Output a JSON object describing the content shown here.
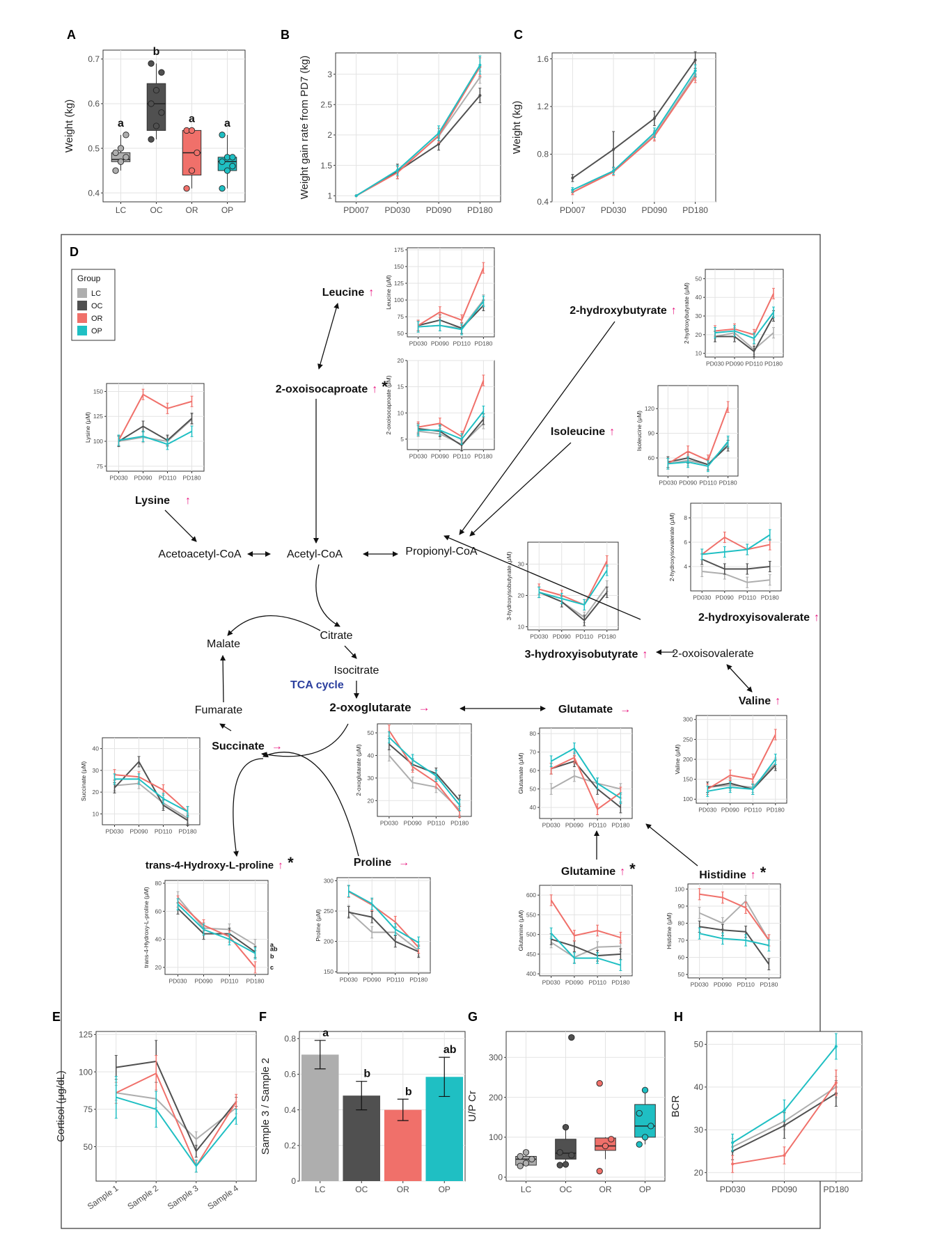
{
  "colors": {
    "LC": "#AEAEAE",
    "OC": "#505050",
    "OR": "#F0706A",
    "OP": "#1FBFC3",
    "arrow_up": "#E8167F",
    "tca": "#2B3F9E"
  },
  "legend": {
    "title": "Group",
    "items": [
      "LC",
      "OC",
      "OR",
      "OP"
    ]
  },
  "chart_data": [
    {
      "panel": "A",
      "type": "box",
      "ylabel": "Weight (kg)",
      "ylim": [
        0.38,
        0.72
      ],
      "yticks": [
        0.4,
        0.5,
        0.6,
        0.7
      ],
      "categories": [
        "LC",
        "OC",
        "OR",
        "OP"
      ],
      "boxes": [
        {
          "q1": 0.47,
          "median": 0.475,
          "q3": 0.49,
          "min": 0.45,
          "max": 0.53,
          "points": [
            0.45,
            0.47,
            0.48,
            0.49,
            0.5,
            0.53
          ],
          "letter": "a"
        },
        {
          "q1": 0.54,
          "median": 0.6,
          "q3": 0.645,
          "min": 0.52,
          "max": 0.69,
          "points": [
            0.52,
            0.55,
            0.58,
            0.6,
            0.63,
            0.67,
            0.69
          ],
          "letter": "b"
        },
        {
          "q1": 0.44,
          "median": 0.49,
          "q3": 0.54,
          "min": 0.41,
          "max": 0.54,
          "points": [
            0.41,
            0.45,
            0.49,
            0.54,
            0.54
          ],
          "letter": "a"
        },
        {
          "q1": 0.45,
          "median": 0.47,
          "q3": 0.48,
          "min": 0.41,
          "max": 0.53,
          "points": [
            0.41,
            0.45,
            0.46,
            0.47,
            0.48,
            0.48,
            0.53
          ],
          "letter": "a"
        }
      ]
    },
    {
      "panel": "B",
      "type": "line",
      "ylabel": "Weight gain rate from PD7 (kg)",
      "x": [
        "PD007",
        "PD030",
        "PD090",
        "PD180"
      ],
      "ylim": [
        0.9,
        3.35
      ],
      "yticks": [
        1.0,
        1.5,
        2.0,
        2.5,
        3.0
      ],
      "series": [
        {
          "name": "LC",
          "values": [
            1.0,
            1.4,
            1.98,
            2.95
          ],
          "err": [
            0,
            0.08,
            0.08,
            0.1
          ]
        },
        {
          "name": "OC",
          "values": [
            1.0,
            1.4,
            1.85,
            2.65
          ],
          "err": [
            0,
            0.12,
            0.1,
            0.12
          ]
        },
        {
          "name": "OR",
          "values": [
            1.0,
            1.38,
            1.99,
            3.12
          ],
          "err": [
            0,
            0.1,
            0.12,
            0.15
          ]
        },
        {
          "name": "OP",
          "values": [
            1.0,
            1.42,
            2.03,
            3.15
          ],
          "err": [
            0,
            0.08,
            0.12,
            0.15
          ]
        }
      ]
    },
    {
      "panel": "C",
      "type": "line",
      "ylabel": "Weight (kg)",
      "x": [
        "PD007",
        "PD030",
        "PD090",
        "PD180"
      ],
      "ylim": [
        0.4,
        1.65
      ],
      "yticks": [
        0.4,
        0.8,
        1.2,
        1.6
      ],
      "series": [
        {
          "name": "LC",
          "values": [
            0.48,
            0.66,
            0.96,
            1.47
          ],
          "err": [
            0.02,
            0.03,
            0.04,
            0.05
          ]
        },
        {
          "name": "OC",
          "values": [
            0.6,
            0.84,
            1.1,
            1.59
          ],
          "err": [
            0.03,
            0.15,
            0.06,
            0.07
          ]
        },
        {
          "name": "OR",
          "values": [
            0.48,
            0.65,
            0.95,
            1.45
          ],
          "err": [
            0.02,
            0.03,
            0.04,
            0.05
          ]
        },
        {
          "name": "OP",
          "values": [
            0.5,
            0.66,
            0.98,
            1.5
          ],
          "err": [
            0.02,
            0.03,
            0.04,
            0.05
          ]
        }
      ]
    },
    {
      "panel": "E",
      "type": "line",
      "ylabel": "Cortisol (μg/dL)",
      "x": [
        "Sample 1",
        "Sample 2",
        "Sample 3",
        "Sample 4"
      ],
      "ylim": [
        27,
        127
      ],
      "yticks": [
        50,
        75,
        100,
        125
      ],
      "series": [
        {
          "name": "LC",
          "values": [
            86,
            82,
            55,
            76
          ],
          "err": [
            5,
            6,
            5,
            4
          ]
        },
        {
          "name": "OC",
          "values": [
            103,
            107,
            47,
            80
          ],
          "err": [
            8,
            14,
            4,
            3
          ]
        },
        {
          "name": "OR",
          "values": [
            86,
            99,
            37,
            80
          ],
          "err": [
            7,
            12,
            4,
            5
          ]
        },
        {
          "name": "OP",
          "values": [
            83,
            75,
            37,
            70
          ],
          "err": [
            14,
            12,
            4,
            5
          ]
        }
      ]
    },
    {
      "panel": "F",
      "type": "bar",
      "ylabel": "Sample 3 / Sample 2",
      "categories": [
        "LC",
        "OC",
        "OR",
        "OP"
      ],
      "ylim": [
        0,
        0.84
      ],
      "yticks": [
        0.0,
        0.2,
        0.4,
        0.6,
        0.8
      ],
      "values": [
        0.71,
        0.48,
        0.4,
        0.585
      ],
      "err": [
        0.08,
        0.08,
        0.06,
        0.11
      ],
      "letters": [
        "a",
        "b",
        "b",
        "ab"
      ]
    },
    {
      "panel": "G",
      "type": "box",
      "ylabel": "U/P Cr",
      "categories": [
        "LC",
        "OC",
        "OR",
        "OP"
      ],
      "ylim": [
        -10,
        365
      ],
      "yticks": [
        0,
        100,
        200,
        300
      ],
      "boxes": [
        {
          "q1": 30,
          "median": 45,
          "q3": 52,
          "min": 28,
          "max": 62,
          "points": [
            28,
            35,
            45,
            52,
            62
          ]
        },
        {
          "q1": 45,
          "median": 60,
          "q3": 95,
          "min": 30,
          "max": 125,
          "points": [
            30,
            32,
            55,
            62,
            125,
            350
          ]
        },
        {
          "q1": 67,
          "median": 78,
          "q3": 98,
          "min": 45,
          "max": 100,
          "points": [
            15,
            78,
            95,
            235
          ]
        },
        {
          "q1": 100,
          "median": 128,
          "q3": 182,
          "min": 82,
          "max": 218,
          "points": [
            82,
            100,
            128,
            160,
            218
          ]
        }
      ]
    },
    {
      "panel": "H",
      "type": "line",
      "ylabel": "BCR",
      "x": [
        "PD030",
        "PD090",
        "PD180"
      ],
      "ylim": [
        18,
        53
      ],
      "yticks": [
        20,
        30,
        40,
        50
      ],
      "series": [
        {
          "name": "LC",
          "values": [
            26,
            32,
            40
          ],
          "err": [
            2,
            2,
            2.5
          ]
        },
        {
          "name": "OC",
          "values": [
            25,
            31,
            38.5
          ],
          "err": [
            2,
            3,
            3
          ]
        },
        {
          "name": "OR",
          "values": [
            22,
            24,
            41
          ],
          "err": [
            2,
            2,
            3
          ]
        },
        {
          "name": "OP",
          "values": [
            27,
            34.5,
            49.5
          ],
          "err": [
            2,
            2.5,
            3
          ]
        }
      ]
    }
  ],
  "metabolites": [
    {
      "id": "leucine",
      "ylabel": "Leucine (μM)",
      "ylim": [
        45,
        178
      ],
      "yticks": [
        50,
        75,
        100,
        125,
        150,
        175
      ],
      "x": [
        "PD030",
        "PD090",
        "PD110",
        "PD180"
      ],
      "series": {
        "LC": [
          60,
          62,
          58,
          100
        ],
        "OC": [
          62,
          70,
          58,
          92
        ],
        "OR": [
          62,
          82,
          70,
          148
        ],
        "OP": [
          60,
          62,
          56,
          98
        ]
      }
    },
    {
      "id": "oxoisocaproate",
      "ylabel": "2-oxoisocaproate (μM)",
      "ylim": [
        3,
        20
      ],
      "yticks": [
        5,
        10,
        15,
        20
      ],
      "x": [
        "PD030",
        "PD090",
        "PD110",
        "PD180"
      ],
      "series": {
        "LC": [
          6.5,
          6.0,
          4.0,
          8.0
        ],
        "OC": [
          7.0,
          6.5,
          3.8,
          8.8
        ],
        "OR": [
          7.3,
          8.0,
          5.5,
          16.2
        ],
        "OP": [
          6.7,
          6.7,
          5.0,
          10.3
        ]
      }
    },
    {
      "id": "hydroxybutyrate",
      "ylabel": "2-hydroxybutyrate (μM)",
      "ylim": [
        8,
        55
      ],
      "yticks": [
        10,
        20,
        30,
        40,
        50
      ],
      "x": [
        "PD030",
        "PD090",
        "PD110",
        "PD180"
      ],
      "series": {
        "LC": [
          19,
          21,
          12,
          21
        ],
        "OC": [
          19,
          19,
          11,
          30
        ],
        "OR": [
          22,
          23,
          20,
          42
        ],
        "OP": [
          21,
          22,
          18,
          32
        ]
      }
    },
    {
      "id": "lysine",
      "ylabel": "Lysine (μM)",
      "ylim": [
        70,
        158
      ],
      "yticks": [
        75,
        100,
        125,
        150
      ],
      "x": [
        "PD030",
        "PD090",
        "PD110",
        "PD180"
      ],
      "series": {
        "LC": [
          100,
          104,
          100,
          122
        ],
        "OC": [
          100,
          115,
          101,
          123
        ],
        "OR": [
          101,
          147,
          133,
          140
        ],
        "OP": [
          101,
          105,
          97,
          110
        ]
      }
    },
    {
      "id": "isoleucine",
      "ylabel": "Isoleucine (μM)",
      "ylim": [
        38,
        148
      ],
      "yticks": [
        60,
        90,
        120
      ],
      "x": [
        "PD030",
        "PD090",
        "PD110",
        "PD180"
      ],
      "series": {
        "LC": [
          53,
          57,
          52,
          78
        ],
        "OC": [
          55,
          60,
          52,
          75
        ],
        "OR": [
          53,
          68,
          57,
          122
        ],
        "OP": [
          53,
          55,
          50,
          80
        ]
      }
    },
    {
      "id": "hydroxyisovalerate",
      "ylabel": "2-hydroxyisovalerate (μM)",
      "ylim": [
        2,
        9.2
      ],
      "yticks": [
        4,
        6,
        8
      ],
      "x": [
        "PD030",
        "PD090",
        "PD110",
        "PD180"
      ],
      "series": {
        "LC": [
          3.6,
          3.4,
          2.7,
          2.9
        ],
        "OC": [
          4.6,
          3.8,
          3.8,
          4.0
        ],
        "OR": [
          5.0,
          6.4,
          5.4,
          5.8
        ],
        "OP": [
          5.0,
          5.2,
          5.4,
          6.6
        ]
      }
    },
    {
      "id": "hydroxyisobutyrate",
      "ylabel": "3-hydroxyisobutyrate (μM)",
      "ylim": [
        9,
        37
      ],
      "yticks": [
        10,
        20,
        30
      ],
      "x": [
        "PD030",
        "PD090",
        "PD110",
        "PD180"
      ],
      "series": {
        "LC": [
          21,
          18,
          13,
          23
        ],
        "OC": [
          21,
          18,
          12,
          21
        ],
        "OR": [
          22,
          20,
          17,
          31
        ],
        "OP": [
          21,
          19,
          17,
          28
        ]
      }
    },
    {
      "id": "succinate",
      "ylabel": "Succinate (μM)",
      "ylim": [
        5,
        45
      ],
      "yticks": [
        10,
        20,
        30,
        40
      ],
      "x": [
        "PD030",
        "PD090",
        "PD110",
        "PD180"
      ],
      "series": {
        "LC": [
          23,
          24,
          15,
          8
        ],
        "OC": [
          22,
          34,
          14,
          7
        ],
        "OR": [
          28,
          27,
          21,
          11
        ],
        "OP": [
          26,
          26,
          17,
          11
        ]
      }
    },
    {
      "id": "oxoglutarate",
      "ylabel": "2-oxoglutarate (μM)",
      "ylim": [
        13,
        54
      ],
      "yticks": [
        20,
        30,
        40,
        50
      ],
      "x": [
        "PD030",
        "PD090",
        "PD110",
        "PD180"
      ],
      "series": {
        "LC": [
          40,
          28,
          26,
          16
        ],
        "OC": [
          45,
          36,
          32,
          20
        ],
        "OR": [
          51,
          35,
          28,
          15
        ],
        "OP": [
          48,
          38,
          31,
          18
        ]
      }
    },
    {
      "id": "glutamate",
      "ylabel": "Glutamate (μM)",
      "ylim": [
        34,
        83
      ],
      "yticks": [
        40,
        50,
        60,
        70,
        80
      ],
      "x": [
        "PD030",
        "PD090",
        "PD110",
        "PD180"
      ],
      "series": {
        "LC": [
          50,
          57,
          53,
          50
        ],
        "OC": [
          61,
          65,
          50,
          40
        ],
        "OR": [
          61,
          67,
          39,
          48
        ],
        "OP": [
          65,
          72,
          53,
          45
        ]
      }
    },
    {
      "id": "valine",
      "ylabel": "Valine (μM)",
      "ylim": [
        90,
        310
      ],
      "yticks": [
        100,
        150,
        200,
        250,
        300
      ],
      "x": [
        "PD030",
        "PD090",
        "PD110",
        "PD180"
      ],
      "series": {
        "LC": [
          130,
          135,
          130,
          190
        ],
        "OC": [
          130,
          140,
          125,
          185
        ],
        "OR": [
          125,
          160,
          150,
          262
        ],
        "OP": [
          120,
          130,
          125,
          200
        ]
      }
    },
    {
      "id": "hydroxyproline",
      "ylabel": "trans-4-Hydroxy-L-proline (μM)",
      "ylim": [
        15,
        82
      ],
      "yticks": [
        20,
        40,
        60,
        80
      ],
      "x": [
        "PD030",
        "PD090",
        "PD110",
        "PD180"
      ],
      "series": {
        "LC": [
          70,
          48,
          47,
          36
        ],
        "OC": [
          62,
          44,
          44,
          31
        ],
        "OR": [
          67,
          50,
          42,
          20
        ],
        "OP": [
          65,
          47,
          40,
          30
        ]
      },
      "letters": [
        "a",
        "ab",
        "b",
        "c"
      ]
    },
    {
      "id": "proline",
      "ylabel": "Proline (μM)",
      "ylim": [
        148,
        305
      ],
      "yticks": [
        150,
        200,
        250,
        300
      ],
      "x": [
        "PD030",
        "PD090",
        "PD110",
        "PD180"
      ],
      "series": {
        "LC": [
          250,
          215,
          215,
          185
        ],
        "OC": [
          248,
          240,
          200,
          183
        ],
        "OR": [
          282,
          260,
          232,
          190
        ],
        "OP": [
          283,
          262,
          220,
          198
        ]
      }
    },
    {
      "id": "glutamine",
      "ylabel": "Glutamine (μM)",
      "ylim": [
        395,
        625
      ],
      "yticks": [
        400,
        450,
        500,
        550,
        600
      ],
      "x": [
        "PD030",
        "PD090",
        "PD110",
        "PD180"
      ],
      "series": {
        "LC": [
          480,
          442,
          468,
          470
        ],
        "OC": [
          488,
          470,
          446,
          450
        ],
        "OR": [
          587,
          497,
          510,
          492
        ],
        "OP": [
          503,
          440,
          440,
          422
        ]
      }
    },
    {
      "id": "histidine",
      "ylabel": "Histidine (μM)",
      "ylim": [
        48,
        103
      ],
      "yticks": [
        50,
        60,
        70,
        80,
        90,
        100
      ],
      "x": [
        "PD030",
        "PD090",
        "PD110",
        "PD180"
      ],
      "series": {
        "LC": [
          86,
          80,
          93,
          70
        ],
        "OC": [
          78,
          76,
          75,
          56
        ],
        "OR": [
          97,
          95,
          89,
          70
        ],
        "OP": [
          74,
          71,
          70,
          67
        ]
      }
    }
  ],
  "pathway": {
    "title": "TCA cycle",
    "nodes": {
      "leucine": "Leucine",
      "oxoisocaproate": "2-oxoisocaproate",
      "hydroxybutyrate": "2-hydroxybutyrate",
      "isoleucine": "Isoleucine",
      "lysine": "Lysine",
      "acetoacetyl": "Acetoacetyl-CoA",
      "acetyl": "Acetyl-CoA",
      "propionyl": "Propionyl-CoA",
      "hydroxyisovalerate": "2-hydroxyisovalerate",
      "citrate": "Citrate",
      "malate": "Malate",
      "isocitrate": "Isocitrate",
      "hydroxyisobutyrate": "3-hydroxyisobutyrate",
      "oxoisovalerate": "2-oxoisovalerate",
      "fumarate": "Fumarate",
      "oxoglutarate": "2-oxoglutarate",
      "glutamate": "Glutamate",
      "valine": "Valine",
      "succinate": "Succinate",
      "hydroxyproline": "trans-4-Hydroxy-L-proline",
      "proline": "Proline",
      "glutamine": "Glutamine",
      "histidine": "Histidine"
    },
    "up_arrow": "↑",
    "right_arrow": "→",
    "star": "*"
  },
  "panel_labels": [
    "A",
    "B",
    "C",
    "D",
    "E",
    "F",
    "G",
    "H"
  ]
}
